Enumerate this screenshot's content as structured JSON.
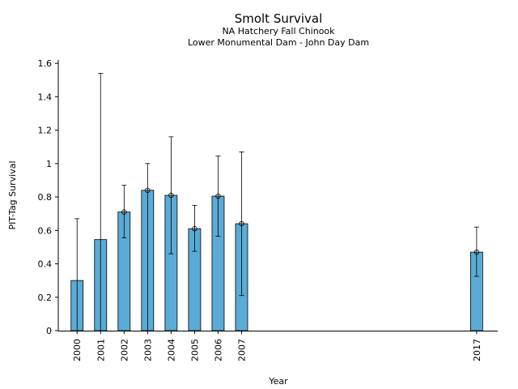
{
  "chart_data": {
    "type": "bar",
    "title": "Smolt Survival",
    "subtitle_lines": [
      "NA Hatchery Fall Chinook",
      "Lower Monumental Dam - John Day Dam"
    ],
    "xlabel": "Year",
    "ylabel": "PIT-Tag Survival",
    "ylim": [
      0,
      1.62
    ],
    "yticks": [
      0,
      0.2,
      0.4,
      0.6,
      0.8,
      1,
      1.2,
      1.4,
      1.6
    ],
    "ytick_labels": [
      "0",
      "0.2",
      "0.4",
      "0.6",
      "0.8",
      "1",
      "1.2",
      "1.4",
      "1.6"
    ],
    "xlim": [
      1999.2,
      2017.9
    ],
    "bar_color": "#5aabd6",
    "grid": false,
    "data": [
      {
        "year": 2000,
        "label": "2000",
        "value": 0.3,
        "lower": null,
        "upper": 0.67,
        "marker": false
      },
      {
        "year": 2001,
        "label": "2001",
        "value": 0.545,
        "lower": null,
        "upper": 1.54,
        "marker": false
      },
      {
        "year": 2002,
        "label": "2002",
        "value": 0.71,
        "lower": 0.555,
        "upper": 0.87,
        "marker": true
      },
      {
        "year": 2003,
        "label": "2003",
        "value": 0.84,
        "lower": null,
        "upper": 1.0,
        "marker": true
      },
      {
        "year": 2004,
        "label": "2004",
        "value": 0.81,
        "lower": 0.46,
        "upper": 1.16,
        "marker": true
      },
      {
        "year": 2005,
        "label": "2005",
        "value": 0.61,
        "lower": 0.475,
        "upper": 0.75,
        "marker": true
      },
      {
        "year": 2006,
        "label": "2006",
        "value": 0.805,
        "lower": 0.565,
        "upper": 1.045,
        "marker": true
      },
      {
        "year": 2007,
        "label": "2007",
        "value": 0.64,
        "lower": 0.21,
        "upper": 1.07,
        "marker": true
      },
      {
        "year": 2017,
        "label": "2017",
        "value": 0.47,
        "lower": 0.325,
        "upper": 0.62,
        "marker": true
      }
    ]
  }
}
